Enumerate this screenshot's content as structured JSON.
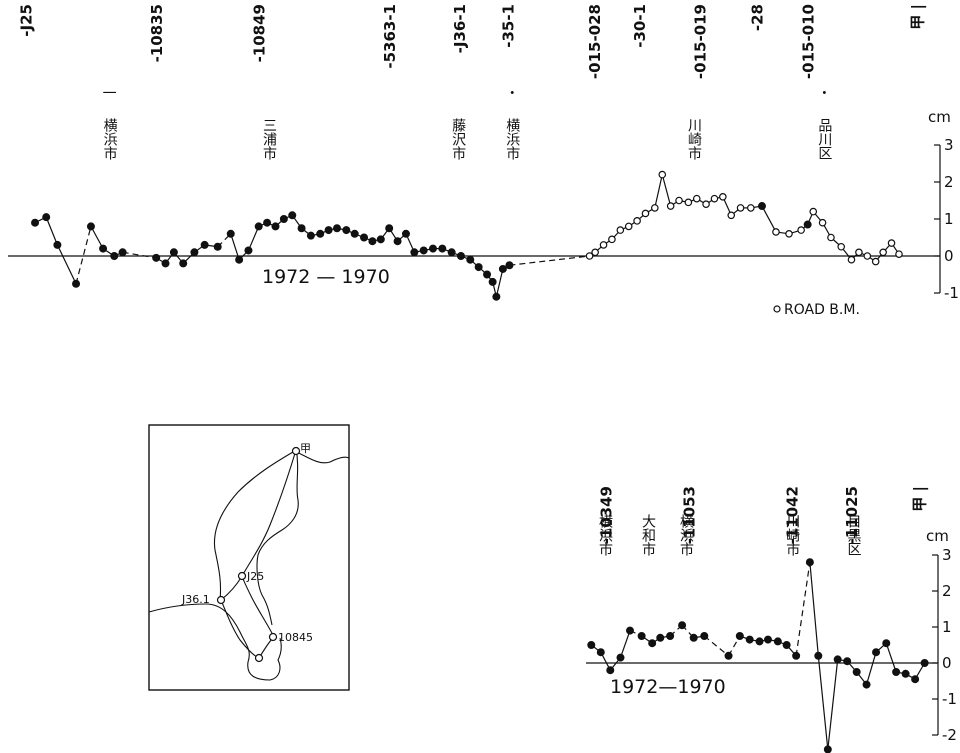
{
  "chart_data": [
    {
      "type": "line",
      "name": "top-profile",
      "unit_label": "cm",
      "period_label": "1972 — 1970",
      "legend": "ROAD B.M.",
      "ylim": [
        -1,
        3
      ],
      "yticks": [
        "3",
        "2",
        "1",
        "0",
        "-1"
      ],
      "x_range": [
        0,
        100
      ],
      "benchmarks": [
        {
          "x": 2,
          "label": "-J25"
        },
        {
          "x": 16,
          "label": "-10835"
        },
        {
          "x": 27,
          "label": "-10849"
        },
        {
          "x": 41,
          "label": "-5363-1"
        },
        {
          "x": 48.5,
          "label": "-J36-1"
        },
        {
          "x": 53.7,
          "label": "-35-1"
        },
        {
          "x": 63,
          "label": "-015-028"
        },
        {
          "x": 67.8,
          "label": "-30-1"
        },
        {
          "x": 74.3,
          "label": "-015-019"
        },
        {
          "x": 80.4,
          "label": "-28"
        },
        {
          "x": 85.9,
          "label": "-015-010"
        },
        {
          "x": 97.6,
          "label": "甲 |"
        }
      ],
      "cities": [
        {
          "x": 10.9,
          "label": "横浜市",
          "mark": "一"
        },
        {
          "x": 28,
          "label": "三浦市"
        },
        {
          "x": 48.3,
          "label": "藤沢市"
        },
        {
          "x": 54.1,
          "label": "横浜市",
          "mark": "・"
        },
        {
          "x": 73.6,
          "label": "川崎市"
        },
        {
          "x": 87.6,
          "label": "品川区",
          "mark": "・"
        }
      ],
      "series": [
        {
          "name": "",
          "marker": "filled",
          "points": [
            {
              "x": 2.9,
              "y": 0.9
            },
            {
              "x": 4.1,
              "y": 1.05
            },
            {
              "x": 5.3,
              "y": 0.3
            },
            {
              "x": 7.3,
              "y": -0.75
            },
            {
              "x": 8.9,
              "y": 0.8,
              "gap": true
            },
            {
              "x": 10.2,
              "y": 0.2
            },
            {
              "x": 11.4,
              "y": 0.0
            },
            {
              "x": 12.3,
              "y": 0.1
            },
            {
              "x": 15.9,
              "y": -0.05,
              "gap": true
            },
            {
              "x": 16.9,
              "y": -0.2
            },
            {
              "x": 17.8,
              "y": 0.1
            },
            {
              "x": 18.8,
              "y": -0.2
            },
            {
              "x": 20.0,
              "y": 0.1
            },
            {
              "x": 21.1,
              "y": 0.3
            },
            {
              "x": 22.5,
              "y": 0.25
            },
            {
              "x": 23.9,
              "y": 0.6,
              "gap": true
            },
            {
              "x": 24.8,
              "y": -0.1
            },
            {
              "x": 25.8,
              "y": 0.15
            },
            {
              "x": 26.9,
              "y": 0.8
            },
            {
              "x": 27.8,
              "y": 0.9
            },
            {
              "x": 28.7,
              "y": 0.8
            },
            {
              "x": 29.6,
              "y": 1.0
            },
            {
              "x": 30.5,
              "y": 1.1
            },
            {
              "x": 31.5,
              "y": 0.75
            },
            {
              "x": 32.5,
              "y": 0.55
            },
            {
              "x": 33.5,
              "y": 0.6
            },
            {
              "x": 34.4,
              "y": 0.7
            },
            {
              "x": 35.3,
              "y": 0.75
            },
            {
              "x": 36.3,
              "y": 0.7
            },
            {
              "x": 37.2,
              "y": 0.6
            },
            {
              "x": 38.2,
              "y": 0.5
            },
            {
              "x": 39.1,
              "y": 0.4
            },
            {
              "x": 40.0,
              "y": 0.45
            },
            {
              "x": 40.9,
              "y": 0.75
            },
            {
              "x": 41.8,
              "y": 0.4
            },
            {
              "x": 42.7,
              "y": 0.6
            },
            {
              "x": 43.6,
              "y": 0.1
            },
            {
              "x": 44.6,
              "y": 0.15
            },
            {
              "x": 45.6,
              "y": 0.2
            },
            {
              "x": 46.6,
              "y": 0.2
            },
            {
              "x": 47.6,
              "y": 0.1
            },
            {
              "x": 48.6,
              "y": 0.0
            },
            {
              "x": 49.6,
              "y": -0.1
            },
            {
              "x": 50.5,
              "y": -0.3
            },
            {
              "x": 51.4,
              "y": -0.5
            },
            {
              "x": 52.0,
              "y": -0.7
            },
            {
              "x": 52.4,
              "y": -1.1
            },
            {
              "x": 53.1,
              "y": -0.35
            },
            {
              "x": 53.8,
              "y": -0.25
            },
            {
              "x": 80.9,
              "y": 1.35
            },
            {
              "x": 85.8,
              "y": 0.85
            }
          ]
        },
        {
          "name": "ROAD B.M.",
          "marker": "open",
          "points": [
            {
              "x": 62.4,
              "y": 0.0,
              "gap": true
            },
            {
              "x": 63.0,
              "y": 0.1
            },
            {
              "x": 63.9,
              "y": 0.3
            },
            {
              "x": 64.8,
              "y": 0.45
            },
            {
              "x": 65.7,
              "y": 0.7
            },
            {
              "x": 66.6,
              "y": 0.8
            },
            {
              "x": 67.5,
              "y": 0.95
            },
            {
              "x": 68.4,
              "y": 1.15
            },
            {
              "x": 69.4,
              "y": 1.3
            },
            {
              "x": 70.2,
              "y": 2.2
            },
            {
              "x": 71.1,
              "y": 1.35
            },
            {
              "x": 72.0,
              "y": 1.5
            },
            {
              "x": 73.0,
              "y": 1.45
            },
            {
              "x": 73.9,
              "y": 1.55
            },
            {
              "x": 74.9,
              "y": 1.4
            },
            {
              "x": 75.8,
              "y": 1.55
            },
            {
              "x": 76.7,
              "y": 1.6
            },
            {
              "x": 77.6,
              "y": 1.1
            },
            {
              "x": 78.6,
              "y": 1.3
            },
            {
              "x": 79.7,
              "y": 1.3
            },
            {
              "x": 82.4,
              "y": 0.65
            },
            {
              "x": 83.8,
              "y": 0.6
            },
            {
              "x": 85.1,
              "y": 0.7
            },
            {
              "x": 86.4,
              "y": 1.2
            },
            {
              "x": 87.4,
              "y": 0.9
            },
            {
              "x": 88.3,
              "y": 0.5
            },
            {
              "x": 89.4,
              "y": 0.25
            },
            {
              "x": 90.5,
              "y": -0.1
            },
            {
              "x": 91.3,
              "y": 0.1
            },
            {
              "x": 92.2,
              "y": 0.0
            },
            {
              "x": 93.1,
              "y": -0.15
            },
            {
              "x": 93.9,
              "y": 0.1
            },
            {
              "x": 94.8,
              "y": 0.35
            },
            {
              "x": 95.6,
              "y": 0.05
            }
          ]
        }
      ]
    },
    {
      "type": "line",
      "name": "bottom-profile",
      "unit_label": "cm",
      "period_label": "1972—1970",
      "ylim": [
        -2,
        3
      ],
      "yticks": [
        "3",
        "2",
        "1",
        "0",
        "-1",
        "-2"
      ],
      "x_range": [
        0,
        100
      ],
      "benchmarks": [
        {
          "x": 5.8,
          "label": "-10349"
        },
        {
          "x": 29.4,
          "label": "-11053"
        },
        {
          "x": 58.6,
          "label": "-11042"
        },
        {
          "x": 75.5,
          "label": "-11025"
        },
        {
          "x": 94.7,
          "label": "甲 |"
        }
      ],
      "cities": [
        {
          "x": 5.4,
          "label": "横浜市"
        },
        {
          "x": 17.6,
          "label": "大和市"
        },
        {
          "x": 28.4,
          "label": "横浜市"
        },
        {
          "x": 58.6,
          "label": "川崎市"
        },
        {
          "x": 76.0,
          "label": "目黒区"
        }
      ],
      "series": [
        {
          "name": "",
          "marker": "filled",
          "points": [
            {
              "x": 1.5,
              "y": 0.5
            },
            {
              "x": 4.2,
              "y": 0.3
            },
            {
              "x": 6.9,
              "y": -0.2
            },
            {
              "x": 9.8,
              "y": 0.15
            },
            {
              "x": 12.5,
              "y": 0.9
            },
            {
              "x": 15.8,
              "y": 0.75
            },
            {
              "x": 18.8,
              "y": 0.55
            },
            {
              "x": 21.1,
              "y": 0.7
            },
            {
              "x": 23.9,
              "y": 0.75
            },
            {
              "x": 27.3,
              "y": 1.05
            },
            {
              "x": 30.6,
              "y": 0.7
            },
            {
              "x": 33.6,
              "y": 0.75
            },
            {
              "x": 40.5,
              "y": 0.2,
              "gap": true
            },
            {
              "x": 43.7,
              "y": 0.75
            },
            {
              "x": 46.5,
              "y": 0.65
            },
            {
              "x": 49.3,
              "y": 0.6
            },
            {
              "x": 51.7,
              "y": 0.65
            },
            {
              "x": 54.5,
              "y": 0.6
            },
            {
              "x": 57.0,
              "y": 0.5
            },
            {
              "x": 59.7,
              "y": 0.2
            },
            {
              "x": 63.6,
              "y": 2.8
            },
            {
              "x": 66.0,
              "y": 0.2
            },
            {
              "x": 68.7,
              "y": -2.4
            },
            {
              "x": 71.5,
              "y": 0.1
            },
            {
              "x": 74.2,
              "y": 0.05
            },
            {
              "x": 76.9,
              "y": -0.25
            },
            {
              "x": 79.7,
              "y": -0.6
            },
            {
              "x": 82.4,
              "y": 0.3
            },
            {
              "x": 85.3,
              "y": 0.55
            },
            {
              "x": 88.1,
              "y": -0.25
            },
            {
              "x": 90.8,
              "y": -0.3
            },
            {
              "x": 93.5,
              "y": -0.45
            },
            {
              "x": 96.2,
              "y": 0.0
            }
          ]
        }
      ]
    }
  ],
  "inset_map": {
    "points": [
      {
        "label": "甲"
      },
      {
        "label": "J25"
      },
      {
        "label": "J36.1"
      },
      {
        "label": "10845"
      }
    ]
  }
}
